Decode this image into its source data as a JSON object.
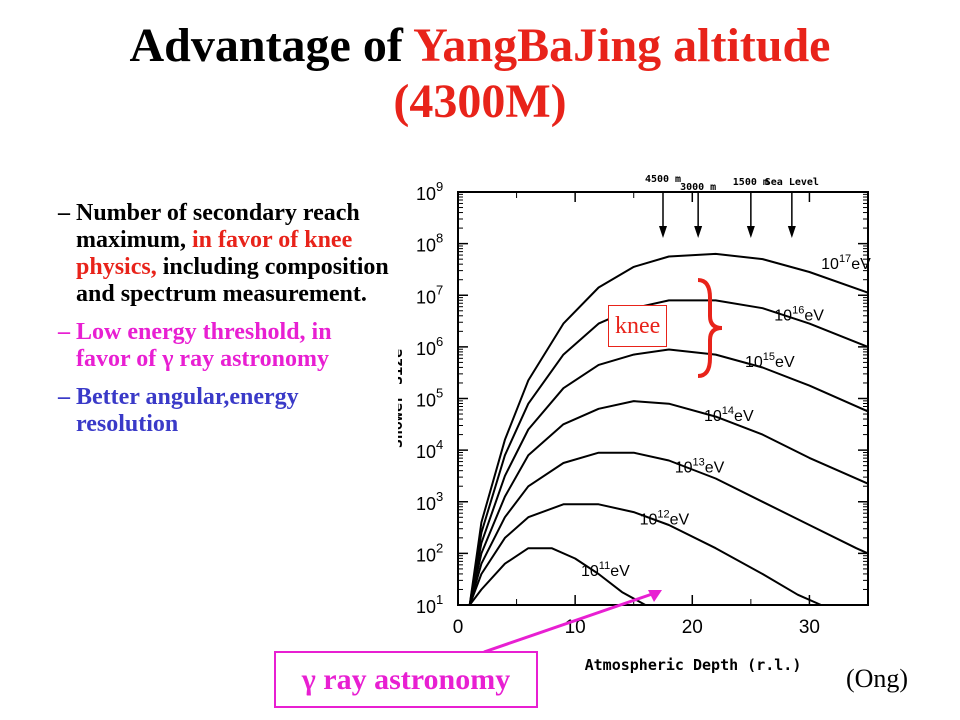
{
  "title": {
    "line1_black": "Advantage of ",
    "line1_red": "YangBaJing altitude",
    "line2_red": "(4300M)"
  },
  "bullets": [
    {
      "dash": "–",
      "text_black": "Number of secondary reach maximum, ",
      "text_red": "in favor of knee physics,",
      "text_black2": " including composition and spectrum measurement."
    },
    {
      "dash": "–",
      "text": "Low energy threshold, in favor of γ ray astronomy"
    },
    {
      "dash": "–",
      "text": "Better angular,energy resolution"
    }
  ],
  "annotations": {
    "knee_label": "knee",
    "gamma_label": "γ ray astronomy",
    "credit": "(Ong)"
  },
  "colors": {
    "red": "#e8231a",
    "magenta": "#e81fd2",
    "blue": "#3a3ac8"
  },
  "chart_data": {
    "type": "line",
    "xlabel": "Atmospheric Depth (r.l.)",
    "ylabel": "Shower Size",
    "xlim": [
      0,
      35
    ],
    "ylim_log10": [
      1,
      9
    ],
    "x_ticks": [
      "0",
      "10",
      "20",
      "30"
    ],
    "y_ticks": [
      {
        "base": "10",
        "exp": "1"
      },
      {
        "base": "10",
        "exp": "2"
      },
      {
        "base": "10",
        "exp": "3"
      },
      {
        "base": "10",
        "exp": "4"
      },
      {
        "base": "10",
        "exp": "5"
      },
      {
        "base": "10",
        "exp": "6"
      },
      {
        "base": "10",
        "exp": "7"
      },
      {
        "base": "10",
        "exp": "8"
      },
      {
        "base": "10",
        "exp": "9"
      }
    ],
    "altitude_markers": [
      {
        "label": "4500 m",
        "x": 17.5
      },
      {
        "label": "3000 m",
        "x": 20.5
      },
      {
        "label": "1500 m",
        "x": 25.0
      },
      {
        "label": "Sea Level",
        "x": 28.5
      }
    ],
    "series": [
      {
        "label_base": "10",
        "label_exp": "11",
        "label_unit": "eV",
        "points": [
          [
            1,
            1
          ],
          [
            2,
            1.3
          ],
          [
            4,
            1.8
          ],
          [
            6,
            2.1
          ],
          [
            8,
            2.1
          ],
          [
            10,
            1.9
          ],
          [
            12,
            1.6
          ],
          [
            14,
            1.25
          ],
          [
            16,
            1.0
          ]
        ]
      },
      {
        "label_base": "10",
        "label_exp": "12",
        "label_unit": "eV",
        "points": [
          [
            1,
            1
          ],
          [
            2,
            1.6
          ],
          [
            4,
            2.3
          ],
          [
            6,
            2.7
          ],
          [
            9,
            2.95
          ],
          [
            12,
            2.95
          ],
          [
            15,
            2.8
          ],
          [
            18,
            2.55
          ],
          [
            22,
            2.1
          ],
          [
            26,
            1.6
          ],
          [
            29,
            1.2
          ],
          [
            31,
            1.0
          ]
        ]
      },
      {
        "label_base": "10",
        "label_exp": "13",
        "label_unit": "eV",
        "points": [
          [
            1,
            1
          ],
          [
            2,
            1.8
          ],
          [
            4,
            2.7
          ],
          [
            6,
            3.3
          ],
          [
            9,
            3.75
          ],
          [
            12,
            3.95
          ],
          [
            15,
            3.95
          ],
          [
            18,
            3.8
          ],
          [
            22,
            3.45
          ],
          [
            26,
            3.0
          ],
          [
            30,
            2.55
          ],
          [
            34,
            2.1
          ],
          [
            35,
            2.0
          ]
        ]
      },
      {
        "label_base": "10",
        "label_exp": "14",
        "label_unit": "eV",
        "points": [
          [
            1,
            1
          ],
          [
            2,
            2.0
          ],
          [
            4,
            3.1
          ],
          [
            6,
            3.9
          ],
          [
            9,
            4.5
          ],
          [
            12,
            4.8
          ],
          [
            15,
            4.95
          ],
          [
            18,
            4.9
          ],
          [
            22,
            4.65
          ],
          [
            26,
            4.3
          ],
          [
            30,
            3.85
          ],
          [
            35,
            3.35
          ]
        ]
      },
      {
        "label_base": "10",
        "label_exp": "15",
        "label_unit": "eV",
        "points": [
          [
            1,
            1
          ],
          [
            2,
            2.2
          ],
          [
            4,
            3.5
          ],
          [
            6,
            4.4
          ],
          [
            9,
            5.2
          ],
          [
            12,
            5.65
          ],
          [
            15,
            5.85
          ],
          [
            18,
            5.95
          ],
          [
            22,
            5.85
          ],
          [
            26,
            5.6
          ],
          [
            30,
            5.25
          ],
          [
            35,
            4.75
          ]
        ]
      },
      {
        "label_base": "10",
        "label_exp": "16",
        "label_unit": "eV",
        "points": [
          [
            1,
            1
          ],
          [
            2,
            2.4
          ],
          [
            4,
            3.9
          ],
          [
            6,
            4.9
          ],
          [
            9,
            5.85
          ],
          [
            12,
            6.45
          ],
          [
            15,
            6.75
          ],
          [
            18,
            6.9
          ],
          [
            22,
            6.9
          ],
          [
            26,
            6.75
          ],
          [
            30,
            6.45
          ],
          [
            35,
            6.0
          ]
        ]
      },
      {
        "label_base": "10",
        "label_exp": "17",
        "label_unit": "eV",
        "points": [
          [
            1,
            1
          ],
          [
            2,
            2.6
          ],
          [
            4,
            4.2
          ],
          [
            6,
            5.35
          ],
          [
            9,
            6.45
          ],
          [
            12,
            7.15
          ],
          [
            15,
            7.55
          ],
          [
            18,
            7.75
          ],
          [
            22,
            7.8
          ],
          [
            26,
            7.7
          ],
          [
            30,
            7.45
          ],
          [
            35,
            7.05
          ]
        ]
      }
    ]
  }
}
